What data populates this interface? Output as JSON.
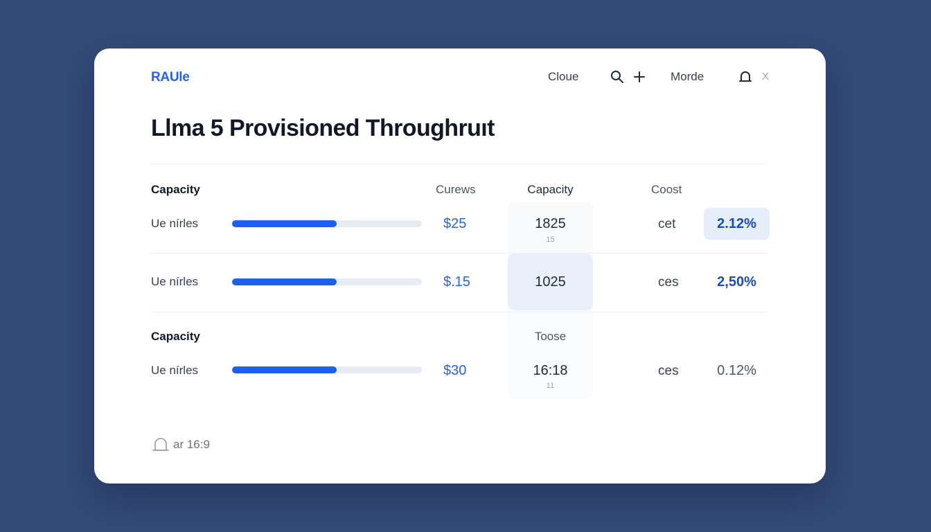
{
  "header": {
    "brand": "RAUle",
    "nav": [
      "Cloue",
      "Morde"
    ],
    "close_label": "X",
    "icons": [
      "search-icon",
      "plus-icon",
      "bell-icon",
      "close-icon"
    ]
  },
  "page": {
    "title": "Llma 5 Provisioned Throughruıt"
  },
  "columns": {
    "col1": "Capacity",
    "col2": "Curews",
    "col3": "Capacity",
    "col4": "Coost"
  },
  "rows": [
    {
      "label": "Ue nírles",
      "progress": 0.55,
      "price": "$25",
      "capacity": "1825",
      "capacity_sub": "15",
      "cost": "cet",
      "percent": "2.12%"
    },
    {
      "label": "Ue nírles",
      "progress": 0.55,
      "price": "$.15",
      "capacity": "1025",
      "capacity_sub": "",
      "cost": "ces",
      "percent": "2,50%"
    }
  ],
  "section2": {
    "heading": "Capacity",
    "col3": "Toose",
    "rows": [
      {
        "label": "Ue nírles",
        "progress": 0.55,
        "price": "$30",
        "capacity": "16:18",
        "capacity_sub": "11",
        "cost": "ces",
        "percent": "0.12%"
      }
    ]
  },
  "footer": {
    "text": "ar 16:9",
    "icon": "bell-icon"
  },
  "colors": {
    "background": "#344b78",
    "accent": "#2563eb",
    "bar_fill": "#1d5ff0",
    "highlight": "#e6eefb"
  }
}
